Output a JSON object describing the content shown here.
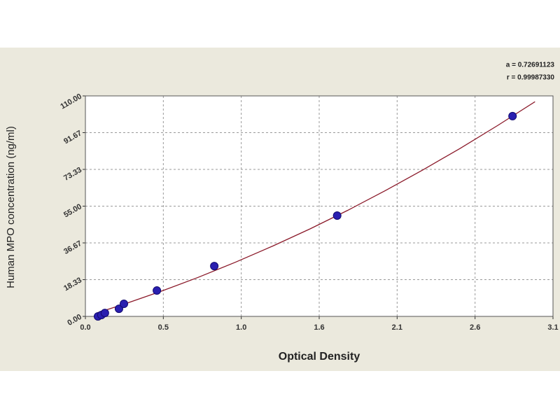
{
  "chart_data": {
    "type": "scatter",
    "annotations": [
      "a = 0.72691123",
      "r = 0.99987330"
    ],
    "x_label": "Optical Density",
    "y_label": "Human MPO concentration (ng/ml)",
    "points": {
      "color": "#2a1fb0",
      "x": [
        0.084,
        0.107,
        0.13,
        0.224,
        0.257,
        0.477,
        0.86,
        1.68,
        2.85
      ],
      "values": [
        0,
        0.7,
        1.7,
        3.8,
        6.3,
        12.9,
        25.1,
        50.3,
        99.9
      ]
    },
    "curve": {
      "color": "#8b1a2a",
      "x": [
        0.08,
        0.25,
        0.5,
        0.75,
        1.0,
        1.25,
        1.5,
        1.75,
        2.0,
        2.25,
        2.5,
        2.75,
        3.0
      ],
      "values": [
        1.84,
        5.9,
        12.4,
        19.4,
        27.0,
        35.1,
        43.7,
        52.9,
        62.7,
        73.0,
        83.8,
        95.2,
        107.1
      ]
    },
    "xlim": [
      0,
      3.12
    ],
    "xticks": [
      {
        "value": 0,
        "label": "0.0"
      },
      {
        "value": 0.52,
        "label": "0.5"
      },
      {
        "value": 1.04,
        "label": "1.0"
      },
      {
        "value": 1.56,
        "label": "1.6"
      },
      {
        "value": 2.08,
        "label": "2.1"
      },
      2.6,
      {
        "value": 3.12,
        "label": "3.1"
      }
    ],
    "ylim": [
      0,
      110
    ],
    "yticks": [
      {
        "value": 0,
        "label": "0.00"
      },
      {
        "value": 18.33,
        "label": "18.33"
      },
      {
        "value": 36.67,
        "label": "36.67"
      },
      {
        "value": 55,
        "label": "55.00"
      },
      {
        "value": 73.33,
        "label": "73.33"
      },
      {
        "value": 91.67,
        "label": "91.67"
      },
      {
        "value": 110,
        "label": "110.00"
      }
    ],
    "grid": true
  }
}
